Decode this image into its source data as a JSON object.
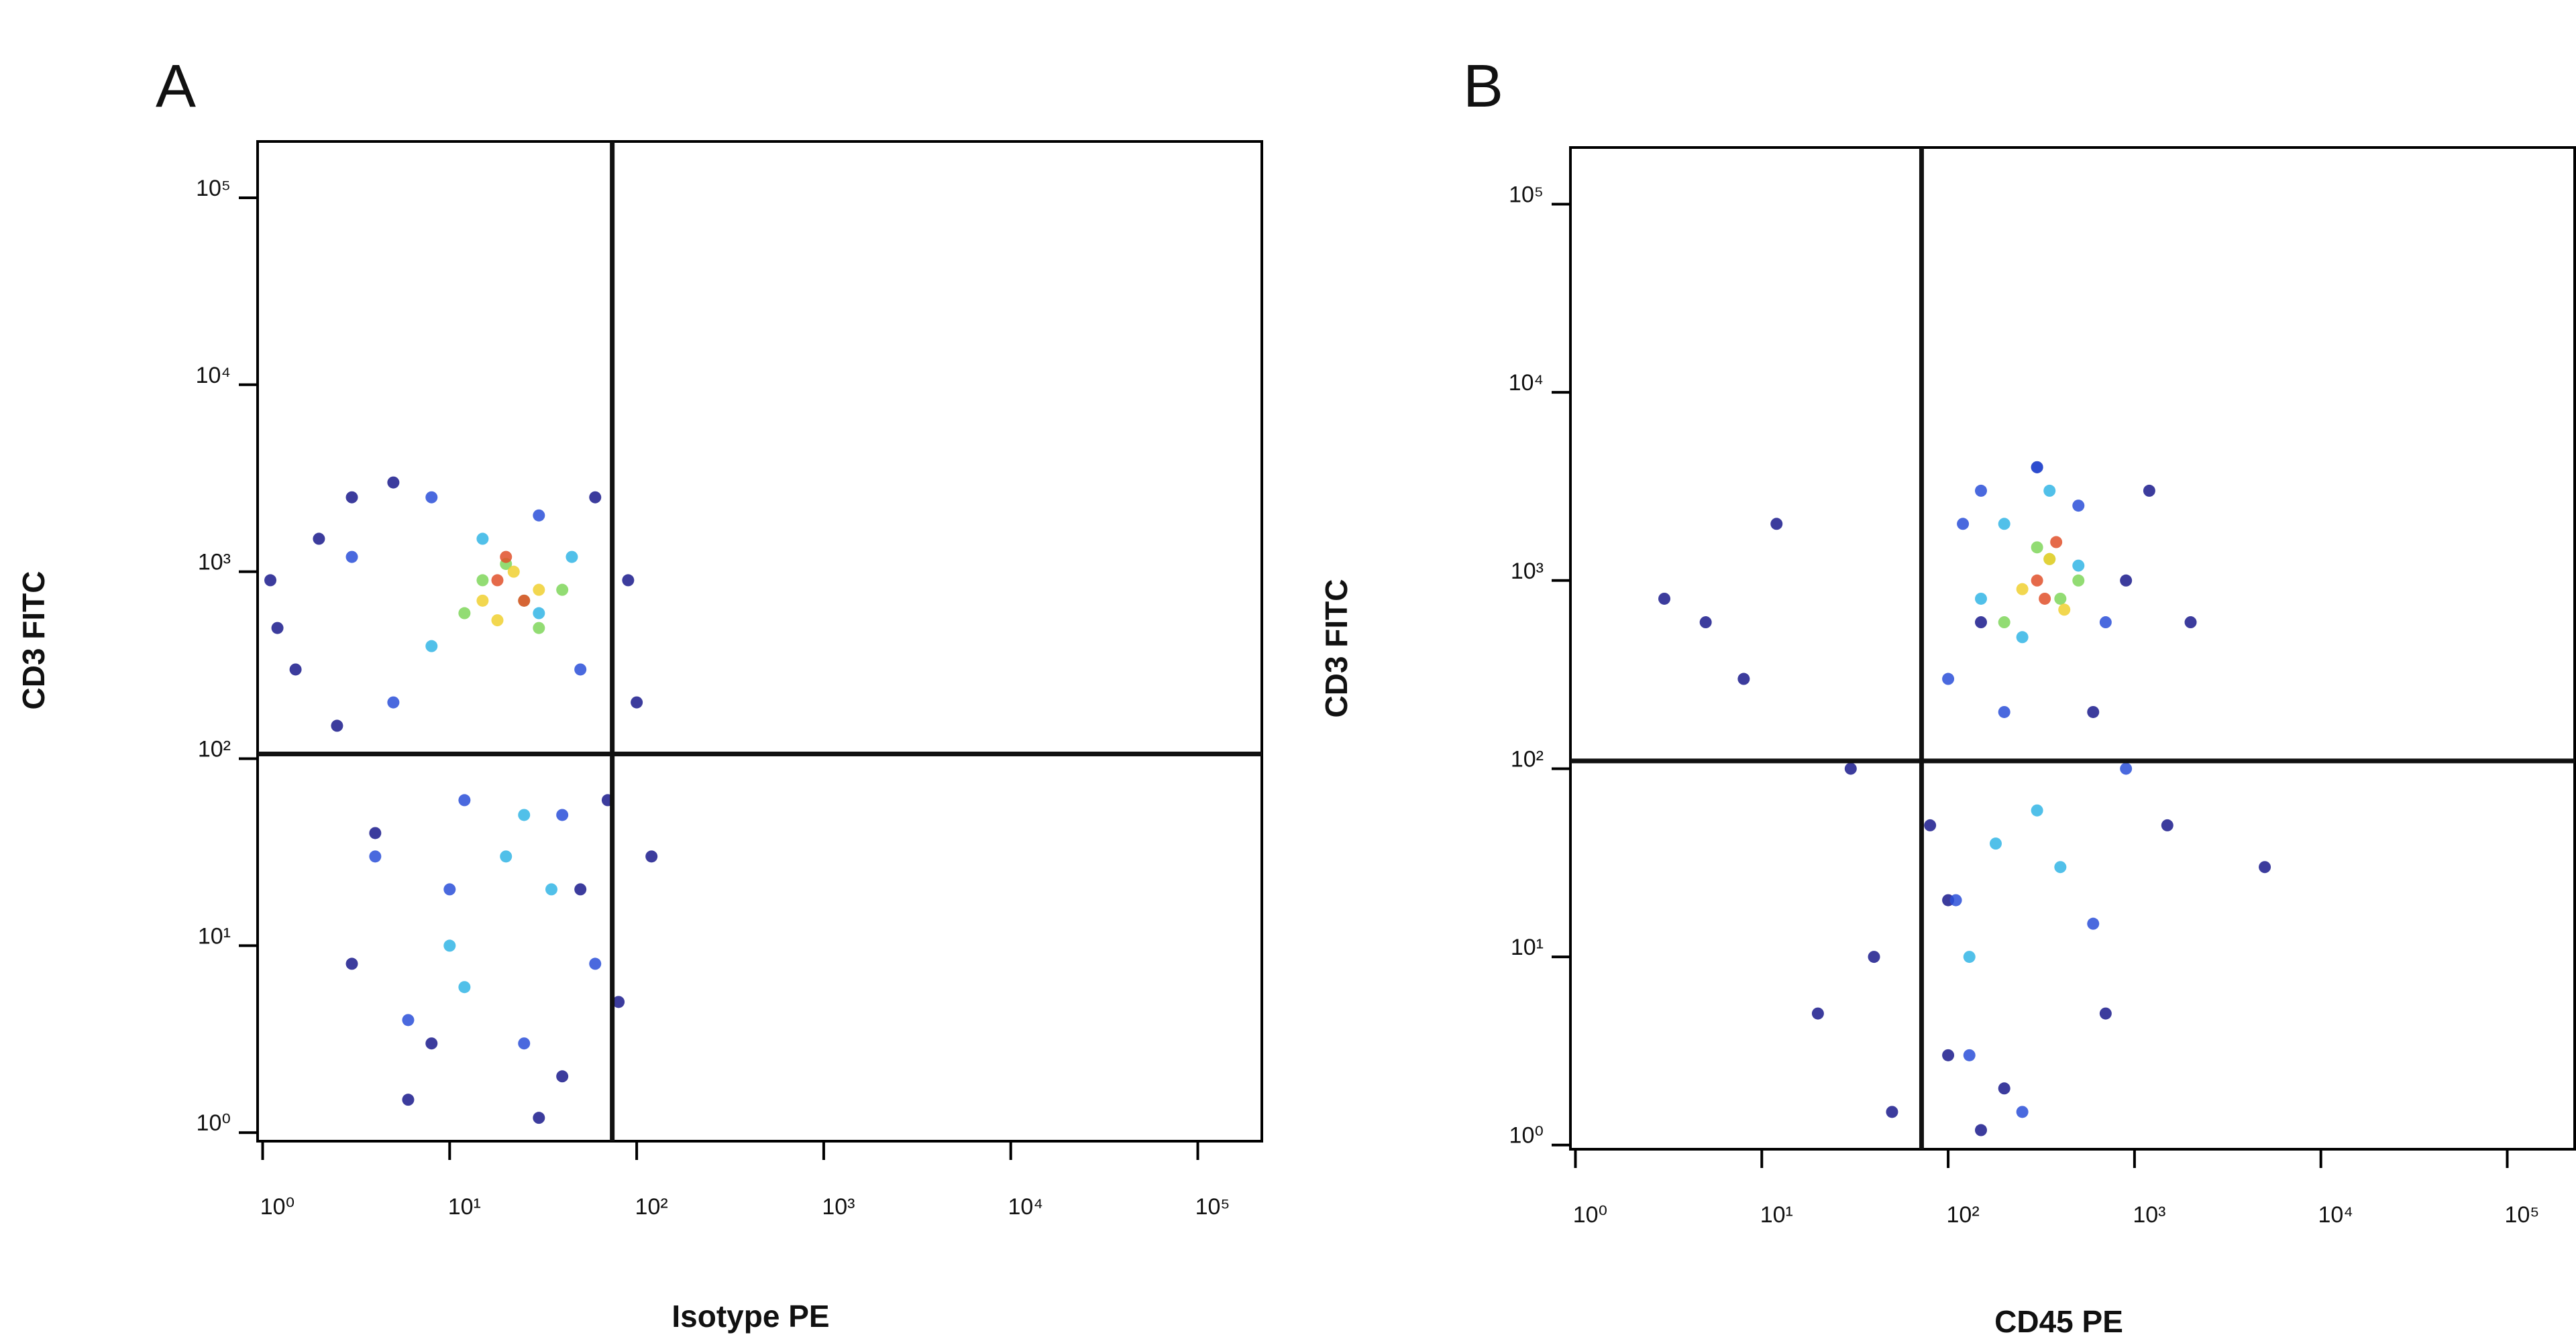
{
  "chart_data": [
    {
      "type": "scatter",
      "panel": "A",
      "xlabel": "Isotype PE",
      "ylabel": "CD3 FITC",
      "xscale": "log",
      "yscale": "log",
      "xlim": [
        0.94,
        220000
      ],
      "ylim": [
        0.9,
        200000
      ],
      "xticks": [
        {
          "value": 1,
          "label": "10⁰"
        },
        {
          "value": 10,
          "label": "10¹"
        },
        {
          "value": 100,
          "label": "10²"
        },
        {
          "value": 1000,
          "label": "10³"
        },
        {
          "value": 10000,
          "label": "10⁴"
        },
        {
          "value": 100000,
          "label": "10⁵"
        }
      ],
      "yticks": [
        {
          "value": 1,
          "label": "10⁰"
        },
        {
          "value": 10,
          "label": "10¹"
        },
        {
          "value": 100,
          "label": "10²"
        },
        {
          "value": 1000,
          "label": "10³"
        },
        {
          "value": 10000,
          "label": "10⁴"
        },
        {
          "value": 100000,
          "label": "10⁵"
        }
      ],
      "gate": {
        "x": 74,
        "y": 106
      },
      "series": [
        {
          "color": "#1a1a8c",
          "x": [
            1.2,
            2,
            3,
            1.5,
            5,
            60,
            90,
            4,
            8,
            40,
            70,
            100,
            3,
            6,
            50,
            120,
            2.5,
            30,
            80,
            1.1
          ],
          "values": [
            500,
            1500,
            2500,
            300,
            3000,
            2500,
            900,
            40,
            3,
            2,
            60,
            200,
            8,
            1.5,
            20,
            30,
            150,
            1.2,
            5,
            900
          ]
        },
        {
          "color": "#2a4fd8",
          "x": [
            3,
            8,
            50,
            30,
            5,
            10,
            40,
            60,
            6,
            25,
            4,
            12
          ],
          "values": [
            1200,
            2500,
            300,
            2000,
            200,
            20,
            50,
            8,
            4,
            3,
            30,
            60
          ]
        },
        {
          "color": "#33b5e5",
          "x": [
            8,
            15,
            30,
            45,
            10,
            20,
            35,
            12,
            25
          ],
          "values": [
            400,
            1500,
            600,
            1200,
            10,
            30,
            20,
            6,
            50
          ]
        },
        {
          "color": "#7fd65a",
          "x": [
            12,
            20,
            30,
            15,
            25,
            40
          ],
          "values": [
            600,
            1100,
            500,
            900,
            700,
            800
          ]
        },
        {
          "color": "#f0d030",
          "x": [
            15,
            22,
            30,
            18
          ],
          "values": [
            700,
            1000,
            800,
            550
          ]
        },
        {
          "color": "#e0502a",
          "x": [
            18,
            25,
            20
          ],
          "values": [
            900,
            700,
            1200
          ]
        }
      ]
    },
    {
      "type": "scatter",
      "panel": "B",
      "xlabel": "CD45 PE",
      "ylabel": "CD3 FITC",
      "xscale": "log",
      "yscale": "log",
      "xlim": [
        0.94,
        230000
      ],
      "ylim": [
        0.95,
        200000
      ],
      "xticks": [
        {
          "value": 1,
          "label": "10⁰"
        },
        {
          "value": 10,
          "label": "10¹"
        },
        {
          "value": 100,
          "label": "10²"
        },
        {
          "value": 1000,
          "label": "10³"
        },
        {
          "value": 10000,
          "label": "10⁴"
        },
        {
          "value": 100000,
          "label": "10⁵"
        }
      ],
      "yticks": [
        {
          "value": 1,
          "label": "10⁰"
        },
        {
          "value": 10,
          "label": "10¹"
        },
        {
          "value": 100,
          "label": "10²"
        },
        {
          "value": 1000,
          "label": "10³"
        },
        {
          "value": 10000,
          "label": "10⁴"
        },
        {
          "value": 100000,
          "label": "10⁵"
        }
      ],
      "gate": {
        "x": 72,
        "y": 110
      },
      "series": [
        {
          "color": "#1a1a8c",
          "x": [
            3,
            5,
            8,
            12,
            20,
            40,
            100,
            150,
            600,
            900,
            1200,
            2000,
            80,
            100,
            200,
            700,
            1500,
            5000,
            50,
            30,
            300,
            150
          ],
          "values": [
            800,
            600,
            300,
            2000,
            5,
            10,
            3,
            1.2,
            200,
            1000,
            3000,
            600,
            50,
            20,
            2,
            5,
            50,
            30,
            1.5,
            100,
            4000,
            600
          ]
        },
        {
          "color": "#2a4fd8",
          "x": [
            100,
            120,
            150,
            200,
            300,
            500,
            700,
            900,
            110,
            130,
            250,
            600
          ],
          "values": [
            300,
            2000,
            3000,
            200,
            4000,
            2500,
            600,
            100,
            20,
            3,
            1.5,
            15
          ]
        },
        {
          "color": "#33b5e5",
          "x": [
            150,
            200,
            250,
            350,
            500,
            130,
            180,
            300,
            400
          ],
          "values": [
            800,
            2000,
            500,
            3000,
            1200,
            10,
            40,
            60,
            30
          ]
        },
        {
          "color": "#7fd65a",
          "x": [
            200,
            300,
            400,
            500,
            350
          ],
          "values": [
            600,
            1500,
            800,
            1000,
            1300
          ]
        },
        {
          "color": "#f0d030",
          "x": [
            250,
            350,
            420
          ],
          "values": [
            900,
            1300,
            700
          ]
        },
        {
          "color": "#e0502a",
          "x": [
            300,
            380,
            330
          ],
          "values": [
            1000,
            1600,
            800
          ]
        }
      ]
    }
  ]
}
